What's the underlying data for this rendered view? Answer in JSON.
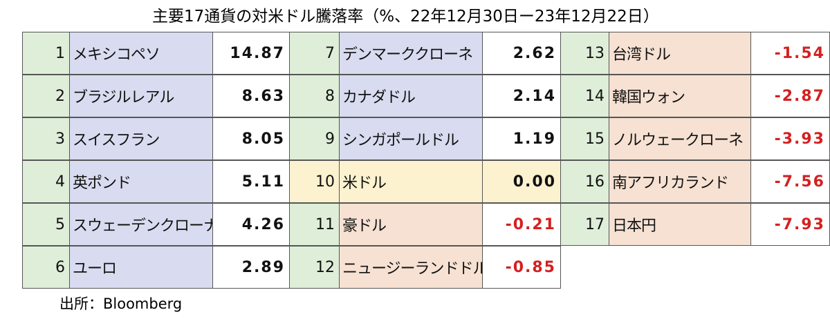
{
  "title": "主要17通貨の対米ドル騰落率（%、22年12月30日ー23年12月22日）",
  "table": {
    "groups": [
      [
        [
          1,
          "メキシコペソ",
          "14.87"
        ],
        [
          2,
          "ブラジルレアル",
          "8.63"
        ],
        [
          3,
          "スイスフラン",
          "8.05"
        ],
        [
          4,
          "英ポンド",
          "5.11"
        ],
        [
          5,
          "スウェーデンクローナ",
          "4.26"
        ],
        [
          6,
          "ユーロ",
          "2.89"
        ]
      ],
      [
        [
          7,
          "デンマーククローネ",
          "2.62"
        ],
        [
          8,
          "カナダドル",
          "2.14"
        ],
        [
          9,
          "シンガポールドル",
          "1.19"
        ],
        [
          10,
          "米ドル",
          "0.00"
        ],
        [
          11,
          "豪ドル",
          "-0.21"
        ],
        [
          12,
          "ニュージーランドドル",
          "-0.85"
        ]
      ],
      [
        [
          13,
          "台湾ドル",
          "-1.54"
        ],
        [
          14,
          "韓国ウォン",
          "-2.87"
        ],
        [
          15,
          "ノルウェークローネ",
          "-3.93"
        ],
        [
          16,
          "南アフリカランド",
          "-7.56"
        ],
        [
          17,
          "日本円",
          "-7.93"
        ]
      ]
    ]
  },
  "source": "出所：Bloomberg"
}
